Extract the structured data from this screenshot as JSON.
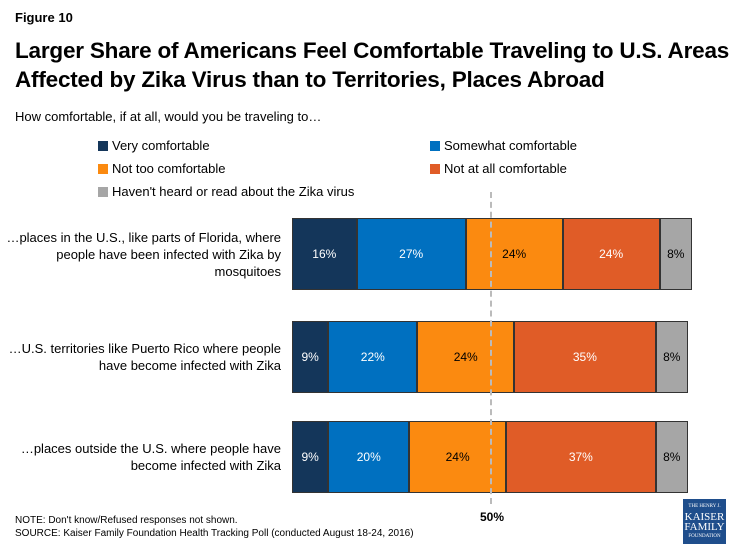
{
  "figure_label": "Figure 10",
  "chart_data": {
    "type": "bar",
    "orientation": "horizontal",
    "stacked": true,
    "title": "Larger Share of Americans Feel Comfortable Traveling to U.S. Areas Affected by Zika Virus than to Territories, Places Abroad",
    "subtitle": "How comfortable, if at all, would you be traveling to…",
    "categories": [
      "…places in the U.S., like parts of Florida, where people have been infected with Zika by mosquitoes",
      "…U.S. territories like Puerto Rico where people have become infected with Zika",
      "…places outside the U.S. where people have become infected with Zika"
    ],
    "series": [
      {
        "name": "Very comfortable",
        "color": "#14365a",
        "text_color": "#ffffff",
        "values": [
          16,
          9,
          9
        ]
      },
      {
        "name": "Somewhat comfortable",
        "color": "#0070c0",
        "text_color": "#ffffff",
        "values": [
          27,
          22,
          20
        ]
      },
      {
        "name": "Not too comfortable",
        "color": "#fb8a10",
        "text_color": "#000000",
        "values": [
          24,
          24,
          24
        ]
      },
      {
        "name": "Not at all comfortable",
        "color": "#e05c27",
        "text_color": "#ffffff",
        "values": [
          24,
          35,
          37
        ]
      },
      {
        "name": "Haven't heard or read about the Zika virus",
        "color": "#a6a6a6",
        "text_color": "#000000",
        "values": [
          8,
          8,
          8
        ]
      }
    ],
    "reference_line": {
      "value": 50,
      "label": "50%"
    },
    "legend_placement": "top"
  },
  "note": "NOTE: Don't know/Refused responses not shown.",
  "source": "SOURCE: Kaiser Family Foundation Health Tracking Poll (conducted August 18-24, 2016)",
  "logo": "THE HENRY J. KAISER FAMILY FOUNDATION"
}
